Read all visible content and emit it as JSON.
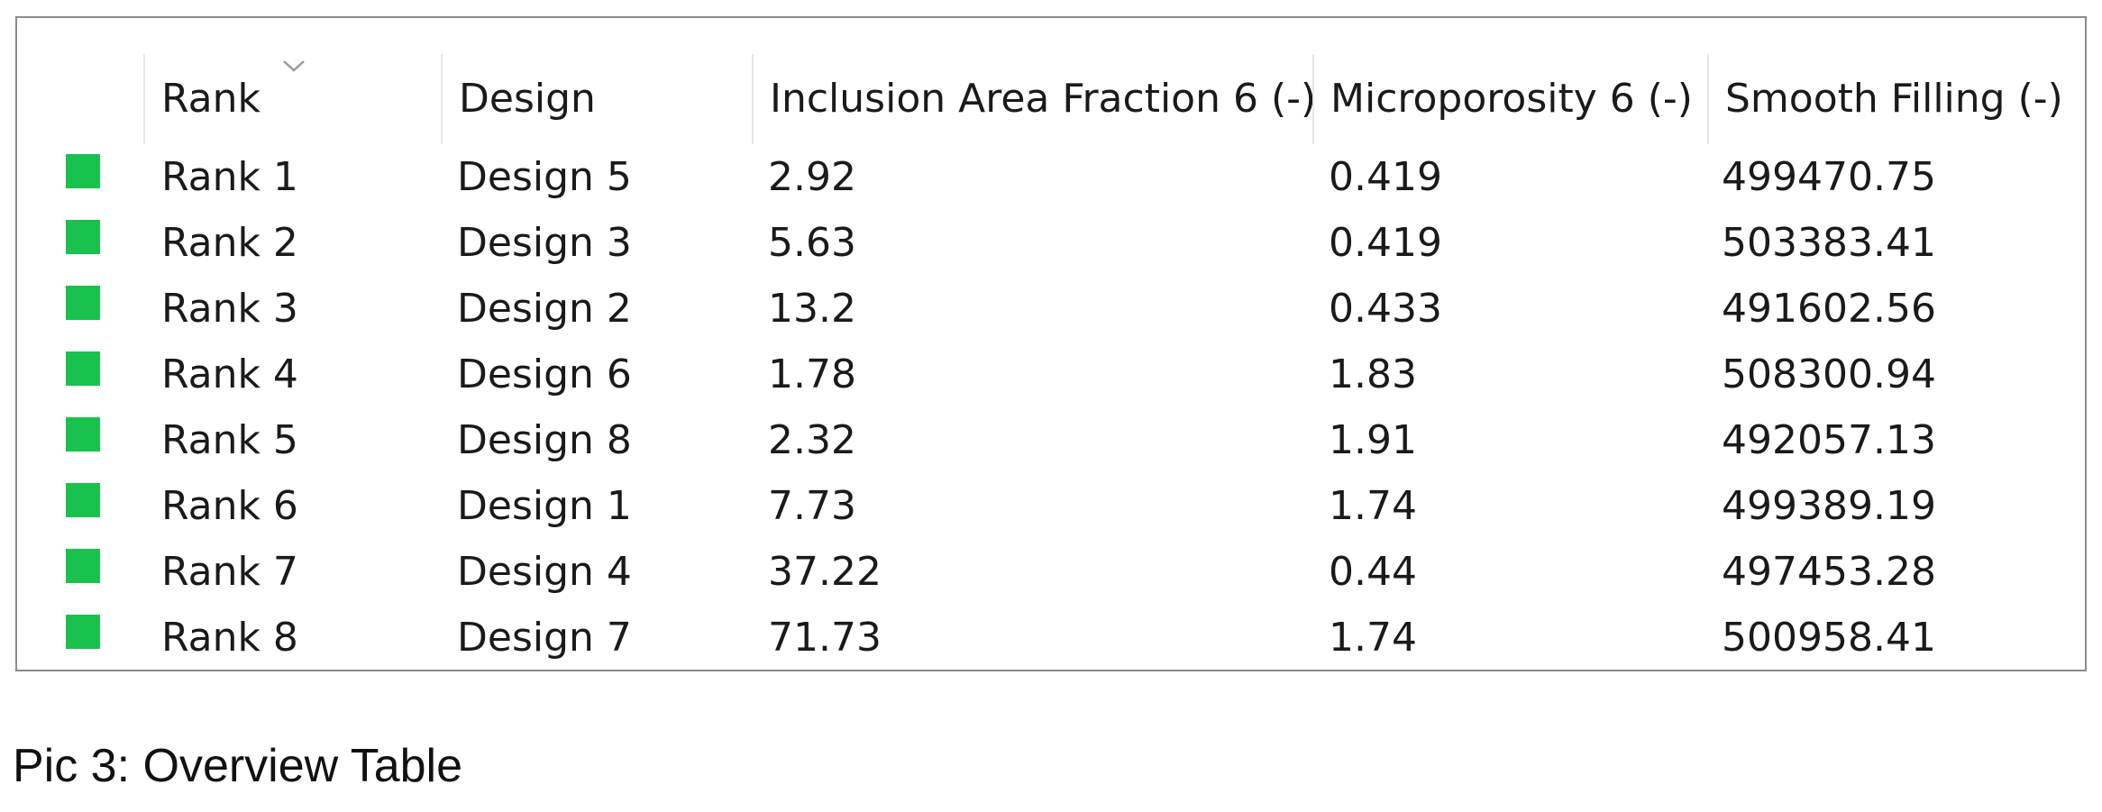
{
  "table": {
    "columns": [
      {
        "label": "Rank"
      },
      {
        "label": "Design"
      },
      {
        "label": "Inclusion Area Fraction 6 (-)"
      },
      {
        "label": "Microporosity 6 (-)"
      },
      {
        "label": "Smooth Filling (-)"
      }
    ],
    "sort_indicator": {
      "column": "Rank",
      "icon": "chevron-down-icon"
    },
    "row_color": "#19c24c",
    "rows": [
      {
        "rank": "Rank 1",
        "design": "Design 5",
        "inclusion": "2.92",
        "microporosity": "0.419",
        "smooth_filling": "499470.75"
      },
      {
        "rank": "Rank 2",
        "design": "Design 3",
        "inclusion": "5.63",
        "microporosity": "0.419",
        "smooth_filling": "503383.41"
      },
      {
        "rank": "Rank 3",
        "design": "Design 2",
        "inclusion": "13.2",
        "microporosity": "0.433",
        "smooth_filling": "491602.56"
      },
      {
        "rank": "Rank 4",
        "design": "Design 6",
        "inclusion": "1.78",
        "microporosity": "1.83",
        "smooth_filling": "508300.94"
      },
      {
        "rank": "Rank 5",
        "design": "Design 8",
        "inclusion": "2.32",
        "microporosity": "1.91",
        "smooth_filling": "492057.13"
      },
      {
        "rank": "Rank 6",
        "design": "Design 1",
        "inclusion": "7.73",
        "microporosity": "1.74",
        "smooth_filling": "499389.19"
      },
      {
        "rank": "Rank 7",
        "design": "Design 4",
        "inclusion": "37.22",
        "microporosity": "0.44",
        "smooth_filling": "497453.28"
      },
      {
        "rank": "Rank 8",
        "design": "Design 7",
        "inclusion": "71.73",
        "microporosity": "1.74",
        "smooth_filling": "500958.41"
      }
    ]
  },
  "caption": "Pic 3: Overview Table"
}
